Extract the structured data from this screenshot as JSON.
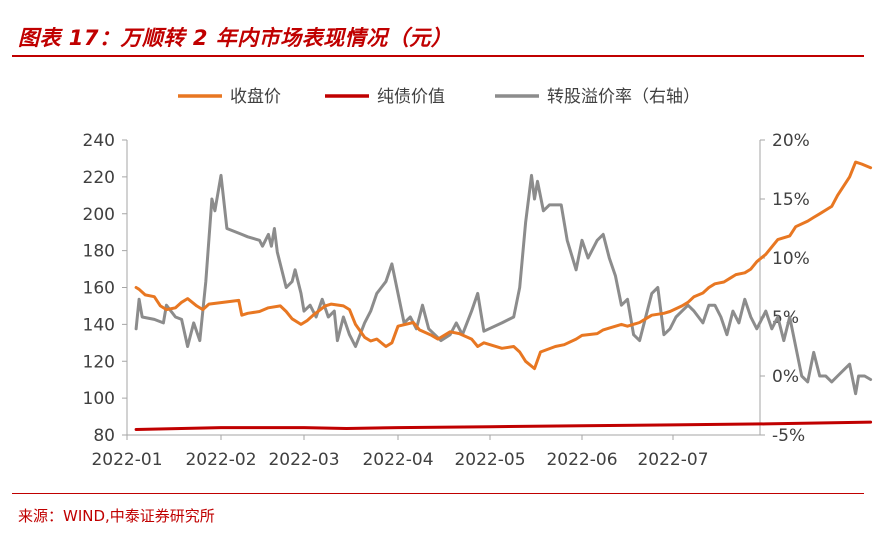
{
  "header": {
    "title": "图表 17：万顺转 2 年内市场表现情况（元）"
  },
  "footer": {
    "source": "来源：WIND,中泰证券研究所"
  },
  "chart_data": {
    "type": "line",
    "legend": {
      "placement": "top"
    },
    "x_ticks": [
      "2022-01",
      "2022-02",
      "2022-03",
      "2022-04",
      "2022-05",
      "2022-06",
      "2022-07"
    ],
    "y_left": {
      "range": [
        80,
        240
      ],
      "ticks": [
        "80",
        "100",
        "120",
        "140",
        "160",
        "180",
        "200",
        "220",
        "240"
      ]
    },
    "y_right": {
      "range": [
        -5,
        20
      ],
      "ticks": [
        "-5%",
        "0%",
        "5%",
        "10%",
        "15%",
        "20%"
      ]
    },
    "grid": false,
    "series": [
      {
        "name": "收盘价",
        "axis": "left",
        "color": "#e87722",
        "points": [
          [
            "2022-01-04",
            160
          ],
          [
            "2022-01-05",
            159
          ],
          [
            "2022-01-07",
            156
          ],
          [
            "2022-01-10",
            155
          ],
          [
            "2022-01-12",
            150
          ],
          [
            "2022-01-14",
            148
          ],
          [
            "2022-01-17",
            149
          ],
          [
            "2022-01-19",
            152
          ],
          [
            "2022-01-21",
            154
          ],
          [
            "2022-01-24",
            150
          ],
          [
            "2022-01-26",
            148
          ],
          [
            "2022-01-28",
            151
          ],
          [
            "2022-02-07",
            153
          ],
          [
            "2022-02-08",
            145
          ],
          [
            "2022-02-10",
            146
          ],
          [
            "2022-02-14",
            147
          ],
          [
            "2022-02-17",
            149
          ],
          [
            "2022-02-21",
            150
          ],
          [
            "2022-02-23",
            147
          ],
          [
            "2022-02-25",
            143
          ],
          [
            "2022-02-28",
            140
          ],
          [
            "2022-03-02",
            142
          ],
          [
            "2022-03-04",
            145
          ],
          [
            "2022-03-08",
            150
          ],
          [
            "2022-03-10",
            151
          ],
          [
            "2022-03-14",
            150
          ],
          [
            "2022-03-16",
            148
          ],
          [
            "2022-03-18",
            140
          ],
          [
            "2022-03-21",
            133
          ],
          [
            "2022-03-23",
            131
          ],
          [
            "2022-03-25",
            132
          ],
          [
            "2022-03-28",
            128
          ],
          [
            "2022-03-30",
            130
          ],
          [
            "2022-04-01",
            139
          ],
          [
            "2022-04-06",
            141
          ],
          [
            "2022-04-08",
            137
          ],
          [
            "2022-04-12",
            134
          ],
          [
            "2022-04-14",
            132
          ],
          [
            "2022-04-18",
            136
          ],
          [
            "2022-04-21",
            135
          ],
          [
            "2022-04-25",
            132
          ],
          [
            "2022-04-27",
            128
          ],
          [
            "2022-04-29",
            130
          ],
          [
            "2022-05-05",
            127
          ],
          [
            "2022-05-09",
            128
          ],
          [
            "2022-05-11",
            125
          ],
          [
            "2022-05-13",
            120
          ],
          [
            "2022-05-16",
            116
          ],
          [
            "2022-05-18",
            125
          ],
          [
            "2022-05-23",
            128
          ],
          [
            "2022-05-26",
            129
          ],
          [
            "2022-05-30",
            132
          ],
          [
            "2022-06-01",
            134
          ],
          [
            "2022-06-06",
            135
          ],
          [
            "2022-06-08",
            137
          ],
          [
            "2022-06-10",
            138
          ],
          [
            "2022-06-14",
            140
          ],
          [
            "2022-06-16",
            139
          ],
          [
            "2022-06-20",
            141
          ],
          [
            "2022-06-22",
            143
          ],
          [
            "2022-06-24",
            145
          ],
          [
            "2022-06-28",
            146
          ],
          [
            "2022-06-30",
            147
          ],
          [
            "2022-07-04",
            150
          ],
          [
            "2022-07-06",
            152
          ],
          [
            "2022-07-08",
            155
          ],
          [
            "2022-07-11",
            157
          ],
          [
            "2022-07-13",
            160
          ],
          [
            "2022-07-15",
            162
          ],
          [
            "2022-07-18",
            163
          ],
          [
            "2022-07-20",
            165
          ],
          [
            "2022-07-22",
            167
          ],
          [
            "2022-07-25",
            168
          ],
          [
            "2022-07-27",
            170
          ],
          [
            "2022-07-29",
            174
          ],
          [
            "2022-08-01",
            178
          ],
          [
            "2022-08-03",
            182
          ],
          [
            "2022-08-05",
            186
          ],
          [
            "2022-08-09",
            188
          ],
          [
            "2022-08-11",
            193
          ],
          [
            "2022-08-15",
            196
          ],
          [
            "2022-08-17",
            198
          ],
          [
            "2022-08-19",
            200
          ],
          [
            "2022-08-23",
            204
          ],
          [
            "2022-08-25",
            210
          ],
          [
            "2022-08-29",
            220
          ],
          [
            "2022-08-31",
            228
          ],
          [
            "2022-09-02",
            227
          ],
          [
            "2022-09-05",
            225
          ]
        ]
      },
      {
        "name": "纯债价值",
        "axis": "left",
        "color": "#c00000",
        "points": [
          [
            "2022-01-04",
            83
          ],
          [
            "2022-02-01",
            84
          ],
          [
            "2022-03-01",
            84
          ],
          [
            "2022-03-15",
            83.5
          ],
          [
            "2022-04-01",
            84
          ],
          [
            "2022-05-01",
            84.5
          ],
          [
            "2022-06-01",
            85
          ],
          [
            "2022-07-01",
            85.5
          ],
          [
            "2022-08-01",
            86
          ],
          [
            "2022-09-05",
            87
          ]
        ]
      },
      {
        "name": "转股溢价率（右轴）",
        "axis": "right",
        "color": "#8c8c8c",
        "points": [
          [
            "2022-01-04",
            4
          ],
          [
            "2022-01-05",
            6.5
          ],
          [
            "2022-01-06",
            5
          ],
          [
            "2022-01-10",
            4.8
          ],
          [
            "2022-01-13",
            4.5
          ],
          [
            "2022-01-14",
            6
          ],
          [
            "2022-01-17",
            5
          ],
          [
            "2022-01-19",
            4.8
          ],
          [
            "2022-01-21",
            2.5
          ],
          [
            "2022-01-23",
            4.5
          ],
          [
            "2022-01-25",
            3
          ],
          [
            "2022-01-27",
            8
          ],
          [
            "2022-01-29",
            15
          ],
          [
            "2022-01-30",
            14
          ],
          [
            "2022-02-01",
            17
          ],
          [
            "2022-02-03",
            12.5
          ],
          [
            "2022-02-08",
            12
          ],
          [
            "2022-02-10",
            11.8
          ],
          [
            "2022-02-14",
            11.5
          ],
          [
            "2022-02-15",
            11
          ],
          [
            "2022-02-17",
            12
          ],
          [
            "2022-02-18",
            11
          ],
          [
            "2022-02-19",
            12.5
          ],
          [
            "2022-02-20",
            10.5
          ],
          [
            "2022-02-23",
            7.5
          ],
          [
            "2022-02-25",
            8
          ],
          [
            "2022-02-26",
            9
          ],
          [
            "2022-02-28",
            7
          ],
          [
            "2022-03-01",
            5.5
          ],
          [
            "2022-03-03",
            6
          ],
          [
            "2022-03-05",
            5
          ],
          [
            "2022-03-07",
            6.5
          ],
          [
            "2022-03-09",
            5
          ],
          [
            "2022-03-11",
            5.5
          ],
          [
            "2022-03-12",
            3
          ],
          [
            "2022-03-14",
            5
          ],
          [
            "2022-03-16",
            3.5
          ],
          [
            "2022-03-18",
            2.5
          ],
          [
            "2022-03-21",
            4.5
          ],
          [
            "2022-03-23",
            5.5
          ],
          [
            "2022-03-25",
            7
          ],
          [
            "2022-03-28",
            8
          ],
          [
            "2022-03-30",
            9.5
          ],
          [
            "2022-04-01",
            7
          ],
          [
            "2022-04-03",
            4.5
          ],
          [
            "2022-04-05",
            5
          ],
          [
            "2022-04-07",
            4
          ],
          [
            "2022-04-09",
            6
          ],
          [
            "2022-04-11",
            4
          ],
          [
            "2022-04-13",
            3.5
          ],
          [
            "2022-04-15",
            3
          ],
          [
            "2022-04-18",
            3.5
          ],
          [
            "2022-04-20",
            4.5
          ],
          [
            "2022-04-22",
            3.5
          ],
          [
            "2022-04-25",
            5.5
          ],
          [
            "2022-04-27",
            7
          ],
          [
            "2022-04-29",
            3.8
          ],
          [
            "2022-05-05",
            4.5
          ],
          [
            "2022-05-09",
            5
          ],
          [
            "2022-05-11",
            7.5
          ],
          [
            "2022-05-13",
            13
          ],
          [
            "2022-05-15",
            17
          ],
          [
            "2022-05-16",
            15
          ],
          [
            "2022-05-17",
            16.5
          ],
          [
            "2022-05-19",
            14
          ],
          [
            "2022-05-21",
            14.5
          ],
          [
            "2022-05-25",
            14.5
          ],
          [
            "2022-05-27",
            11.5
          ],
          [
            "2022-05-30",
            9
          ],
          [
            "2022-06-01",
            11.5
          ],
          [
            "2022-06-03",
            10
          ],
          [
            "2022-06-06",
            11.5
          ],
          [
            "2022-06-08",
            12
          ],
          [
            "2022-06-10",
            10
          ],
          [
            "2022-06-12",
            8.5
          ],
          [
            "2022-06-14",
            6
          ],
          [
            "2022-06-16",
            6.5
          ],
          [
            "2022-06-18",
            3.5
          ],
          [
            "2022-06-20",
            3
          ],
          [
            "2022-06-22",
            5
          ],
          [
            "2022-06-24",
            7
          ],
          [
            "2022-06-26",
            7.5
          ],
          [
            "2022-06-28",
            3.5
          ],
          [
            "2022-06-30",
            4
          ],
          [
            "2022-07-02",
            5
          ],
          [
            "2022-07-04",
            5.5
          ],
          [
            "2022-07-06",
            6
          ],
          [
            "2022-07-08",
            5.5
          ],
          [
            "2022-07-11",
            4.5
          ],
          [
            "2022-07-13",
            6
          ],
          [
            "2022-07-15",
            6
          ],
          [
            "2022-07-17",
            5
          ],
          [
            "2022-07-19",
            3.5
          ],
          [
            "2022-07-21",
            5.5
          ],
          [
            "2022-07-23",
            4.5
          ],
          [
            "2022-07-25",
            6.5
          ],
          [
            "2022-07-27",
            5
          ],
          [
            "2022-07-29",
            4
          ],
          [
            "2022-08-01",
            5.5
          ],
          [
            "2022-08-03",
            4
          ],
          [
            "2022-08-05",
            5
          ],
          [
            "2022-08-07",
            3
          ],
          [
            "2022-08-09",
            5
          ],
          [
            "2022-08-11",
            2.5
          ],
          [
            "2022-08-13",
            0
          ],
          [
            "2022-08-15",
            -0.5
          ],
          [
            "2022-08-17",
            2
          ],
          [
            "2022-08-19",
            0
          ],
          [
            "2022-08-21",
            0
          ],
          [
            "2022-08-23",
            -0.5
          ],
          [
            "2022-08-25",
            0
          ],
          [
            "2022-08-27",
            0.5
          ],
          [
            "2022-08-29",
            1
          ],
          [
            "2022-08-31",
            -1.5
          ],
          [
            "2022-09-01",
            0
          ],
          [
            "2022-09-03",
            0
          ],
          [
            "2022-09-05",
            -0.3
          ]
        ]
      }
    ]
  }
}
